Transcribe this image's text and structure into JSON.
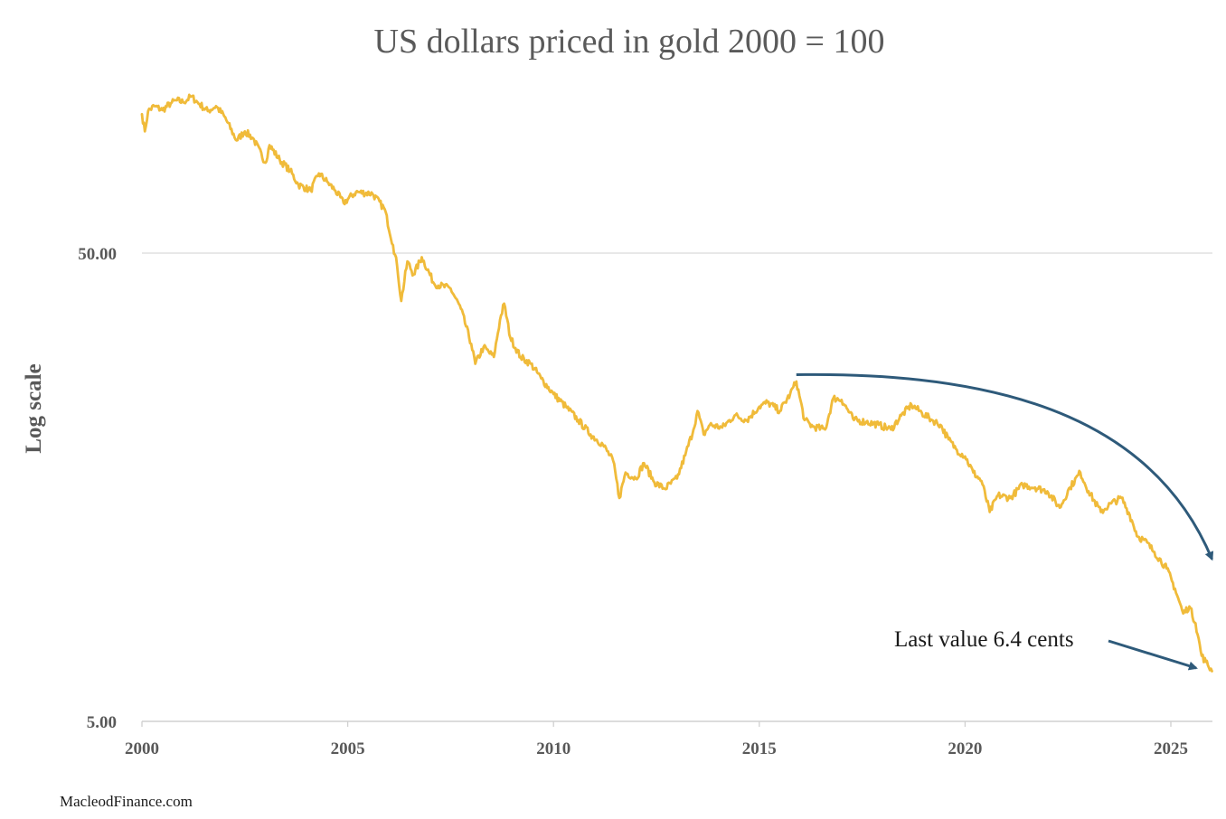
{
  "chart_data": {
    "type": "line",
    "title": "US dollars priced in gold 2000 = 100",
    "xlabel": "",
    "ylabel": "Log scale",
    "y_scale": "log",
    "ylim": [
      5,
      110
    ],
    "xlim": [
      2000,
      2026
    ],
    "y_ticks": [
      {
        "value": 50,
        "label": "50.00"
      },
      {
        "value": 5,
        "label": "5.00"
      }
    ],
    "x_ticks": [
      {
        "value": 2000,
        "label": "2000"
      },
      {
        "value": 2005,
        "label": "2005"
      },
      {
        "value": 2010,
        "label": "2010"
      },
      {
        "value": 2015,
        "label": "2015"
      },
      {
        "value": 2020,
        "label": "2020"
      },
      {
        "value": 2025,
        "label": "2025"
      }
    ],
    "grid": {
      "horizontal": true,
      "vertical": false
    },
    "legend": "none",
    "series": [
      {
        "name": "US dollars priced in gold (2000 = 100)",
        "color": "#f0bb3a",
        "x": [
          2000.0,
          2000.07,
          2000.15,
          2000.3,
          2000.5,
          2000.7,
          2000.85,
          2001.0,
          2001.2,
          2001.4,
          2001.6,
          2001.8,
          2002.0,
          2002.3,
          2002.5,
          2002.7,
          2003.0,
          2003.1,
          2003.35,
          2003.6,
          2003.8,
          2004.1,
          2004.3,
          2004.5,
          2004.7,
          2004.9,
          2005.2,
          2005.6,
          2005.9,
          2006.1,
          2006.2,
          2006.3,
          2006.45,
          2006.6,
          2006.8,
          2007.1,
          2007.5,
          2007.75,
          2008.0,
          2008.1,
          2008.3,
          2008.55,
          2008.7,
          2008.8,
          2008.95,
          2009.2,
          2009.45,
          2009.7,
          2010.0,
          2010.3,
          2010.6,
          2010.9,
          2011.2,
          2011.45,
          2011.6,
          2011.75,
          2012.0,
          2012.2,
          2012.45,
          2012.7,
          2013.0,
          2013.2,
          2013.4,
          2013.5,
          2013.65,
          2013.8,
          2014.1,
          2014.4,
          2014.7,
          2015.0,
          2015.2,
          2015.5,
          2015.75,
          2015.9,
          2016.1,
          2016.3,
          2016.6,
          2016.8,
          2017.0,
          2017.3,
          2017.6,
          2017.9,
          2018.2,
          2018.45,
          2018.7,
          2018.95,
          2019.2,
          2019.4,
          2019.6,
          2019.8,
          2020.0,
          2020.2,
          2020.4,
          2020.6,
          2020.8,
          2021.1,
          2021.4,
          2021.7,
          2022.0,
          2022.3,
          2022.55,
          2022.8,
          2023.0,
          2023.3,
          2023.55,
          2023.8,
          2024.0,
          2024.2,
          2024.35,
          2024.6,
          2024.9,
          2025.1,
          2025.3,
          2025.45,
          2025.6,
          2025.75,
          2025.85,
          2026.0
        ],
        "values": [
          99.0,
          91.0,
          100.5,
          103.0,
          101.0,
          104.5,
          106.0,
          105.0,
          108.0,
          104.0,
          100.5,
          103.0,
          98.0,
          87.0,
          91.0,
          88.0,
          78.0,
          85.0,
          79.0,
          75.0,
          70.0,
          68.0,
          74.0,
          71.0,
          68.0,
          64.0,
          67.5,
          67.0,
          62.0,
          52.0,
          47.0,
          39.5,
          48.0,
          45.0,
          49.0,
          43.0,
          42.0,
          38.0,
          32.0,
          29.0,
          31.5,
          30.0,
          36.0,
          39.0,
          33.0,
          30.0,
          29.0,
          27.0,
          25.0,
          23.5,
          22.0,
          20.5,
          19.5,
          18.0,
          15.0,
          17.0,
          16.5,
          17.8,
          16.2,
          15.7,
          16.5,
          18.5,
          21.0,
          23.0,
          20.5,
          21.5,
          21.2,
          22.5,
          22.0,
          23.5,
          24.0,
          23.0,
          25.0,
          26.6,
          22.0,
          21.3,
          21.0,
          24.5,
          24.3,
          22.0,
          21.8,
          21.5,
          21.0,
          22.5,
          23.7,
          22.8,
          22.0,
          21.5,
          20.0,
          19.0,
          18.4,
          17.0,
          16.3,
          14.0,
          15.2,
          15.0,
          16.0,
          15.8,
          15.5,
          14.3,
          15.8,
          17.0,
          15.5,
          14.0,
          14.6,
          15.0,
          13.8,
          12.4,
          12.2,
          11.5,
          10.6,
          9.6,
          8.5,
          8.8,
          8.1,
          6.9,
          6.7,
          6.4
        ]
      }
    ],
    "annotations": [
      {
        "text": "Last value 6.4 cents",
        "type": "arrow-label",
        "arrow_color": "#2e5a7a"
      },
      {
        "text": "",
        "type": "curved-arrow",
        "arrow_color": "#2e5a7a",
        "from_x": 2015.9,
        "from_value": 27.5,
        "to_x": 2026.0,
        "to_value": 11.1
      }
    ],
    "source": "MacleodFinance.com"
  }
}
